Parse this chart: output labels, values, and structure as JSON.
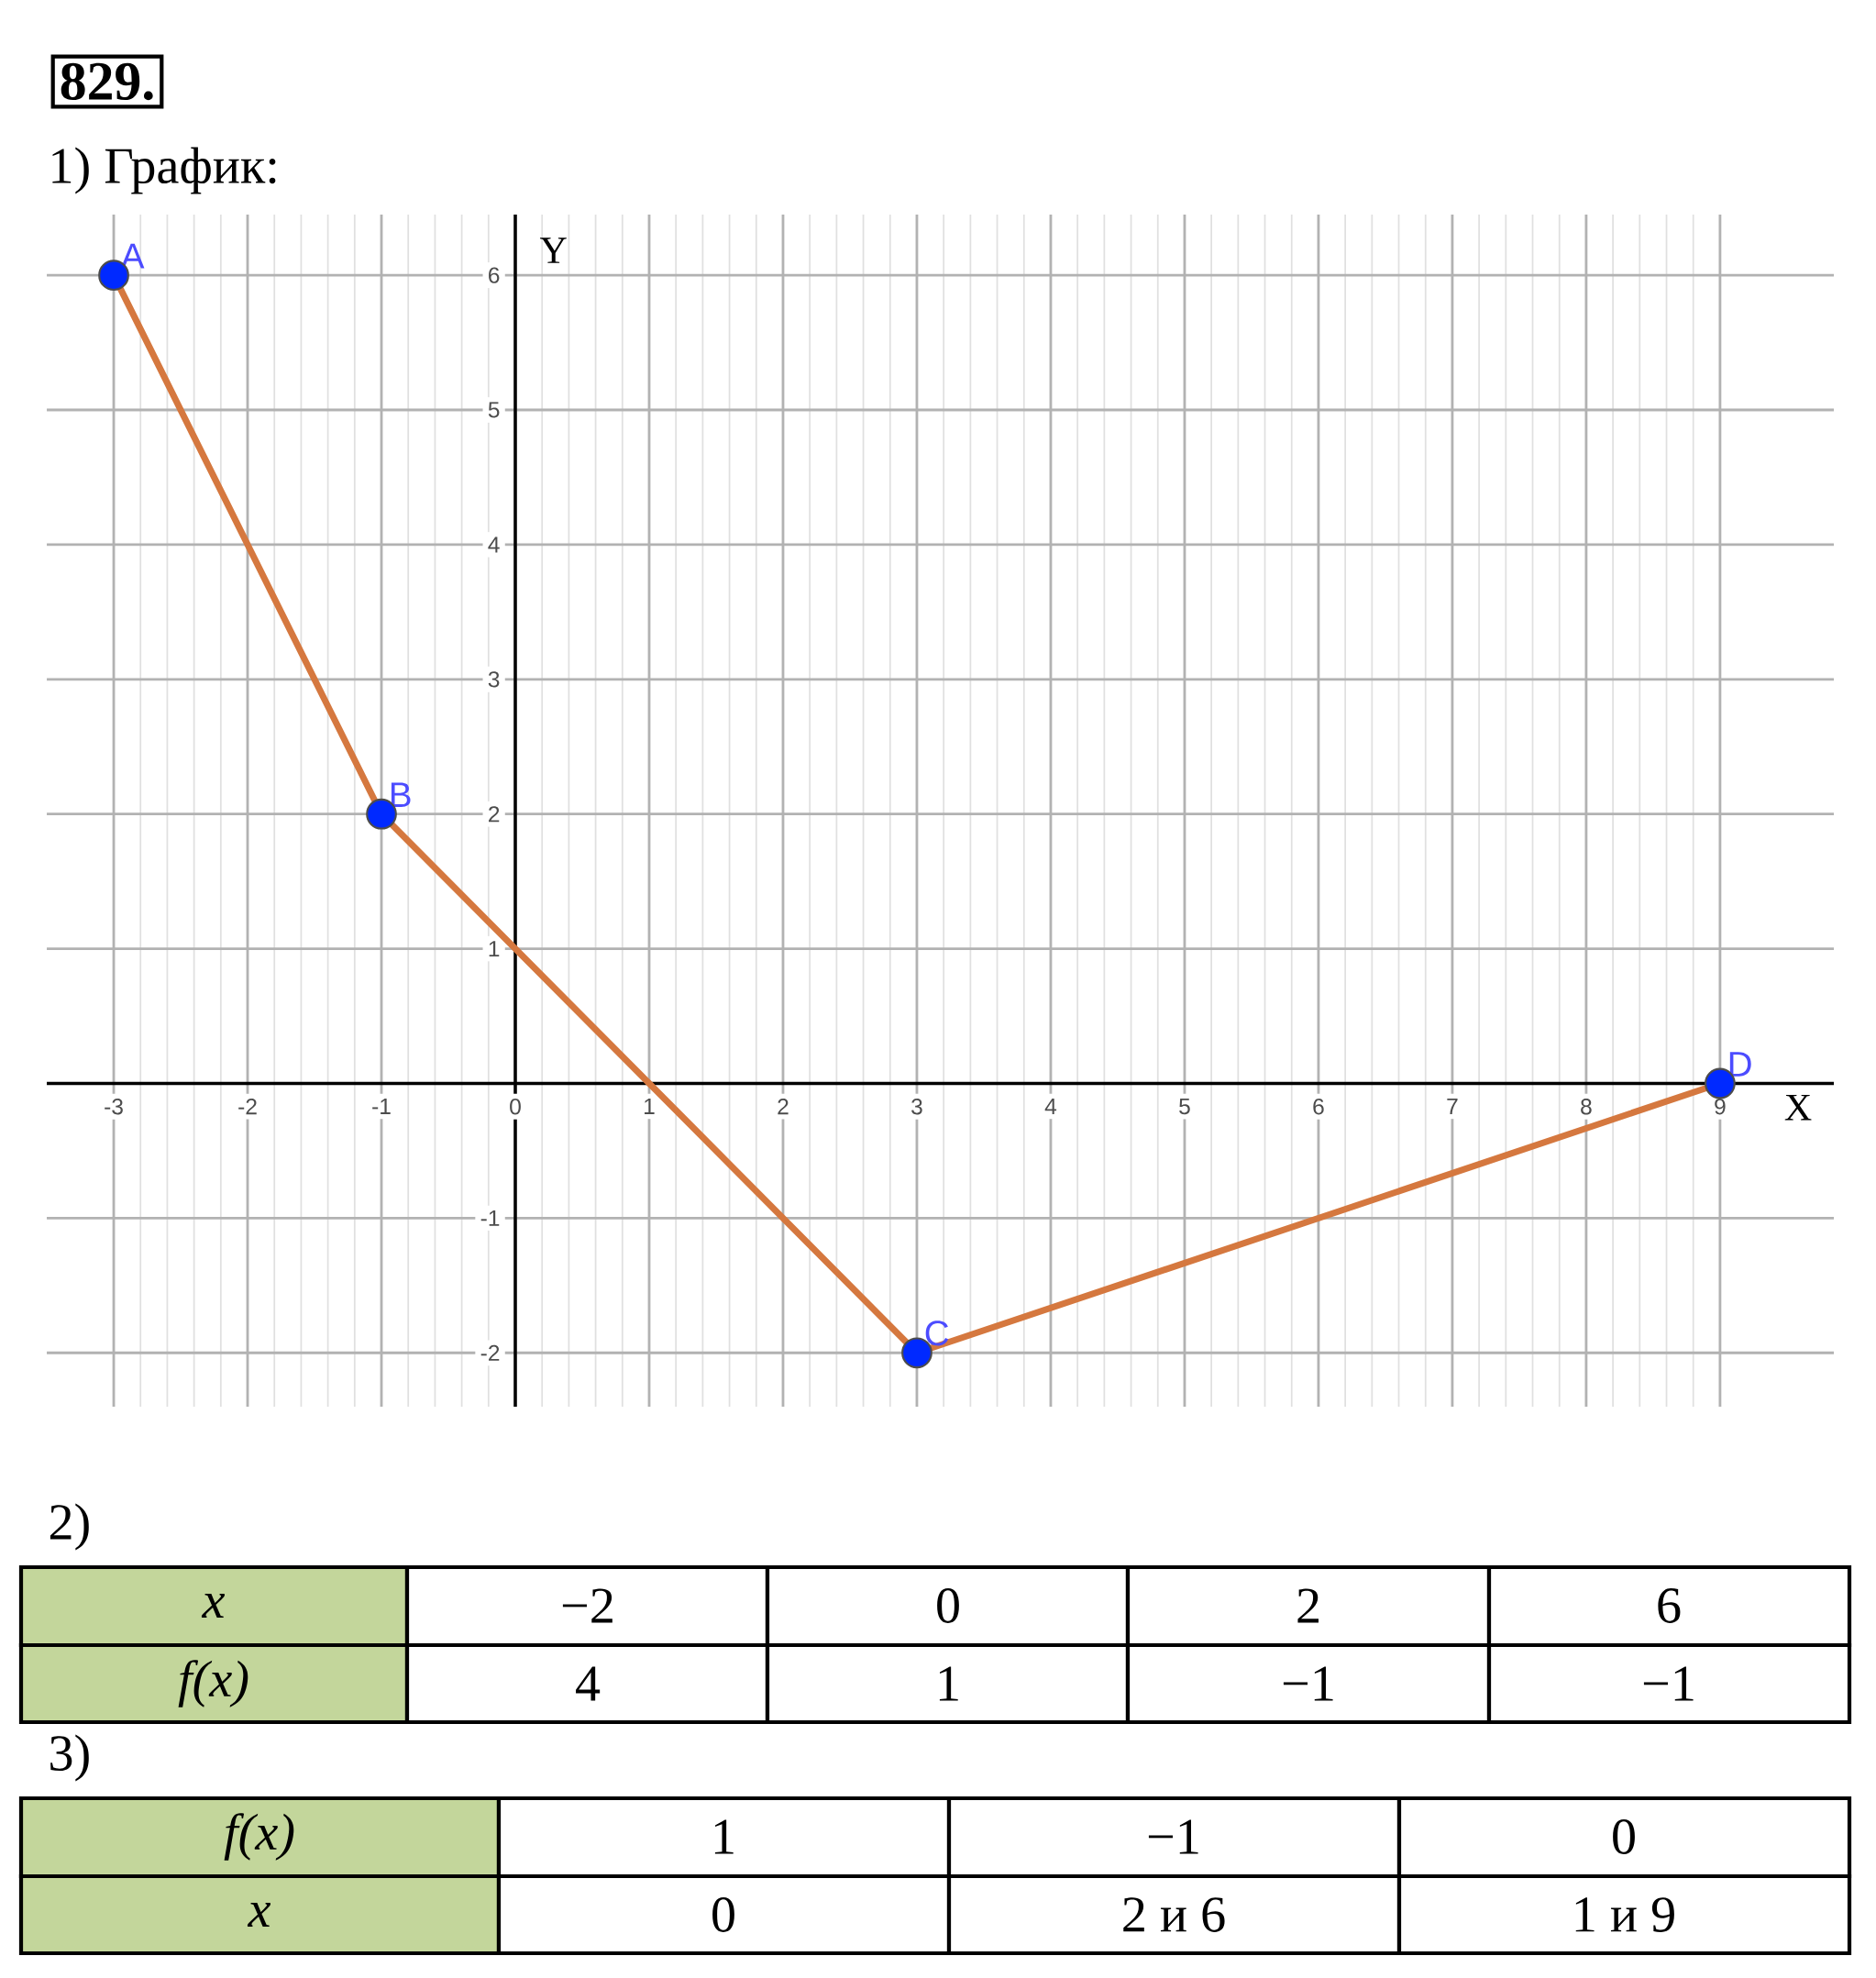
{
  "chart_data": [
    {
      "type": "line",
      "title": "829.",
      "subtitle": "1) График:",
      "xlabel": "X",
      "ylabel": "Y",
      "x": [
        -3,
        -1,
        3,
        9
      ],
      "values": [
        6,
        2,
        -2,
        0
      ],
      "color": "#d5783f",
      "marker": "circle",
      "grid": true,
      "xlim": [
        -3.5,
        9.85
      ],
      "ylim": [
        -2.4,
        6.45
      ],
      "xticks": [
        -3,
        -2,
        -1,
        0,
        1,
        2,
        3,
        4,
        5,
        6,
        7,
        8,
        9
      ],
      "yticks": [
        -2,
        -1,
        1,
        2,
        3,
        4,
        5,
        6
      ],
      "annotations": [
        {
          "text": "A",
          "x": -3,
          "y": 6
        },
        {
          "text": "B",
          "x": -1,
          "y": 2
        },
        {
          "text": "C",
          "x": 3,
          "y": -2
        },
        {
          "text": "D",
          "x": 9,
          "y": 0
        }
      ]
    },
    {
      "type": "other",
      "title": "2)",
      "y_categories": [
        "x",
        "f(x)"
      ],
      "cell_labels": [
        [
          "−2",
          "0",
          "2",
          "6"
        ],
        [
          "4",
          "1",
          "−1",
          "−1"
        ]
      ]
    },
    {
      "type": "other",
      "title": "3)",
      "y_categories": [
        "f(x)",
        "x"
      ],
      "cell_labels": [
        [
          "1",
          "−1",
          "0"
        ],
        [
          "0",
          "2 и 6",
          "1 и 9"
        ]
      ]
    }
  ]
}
